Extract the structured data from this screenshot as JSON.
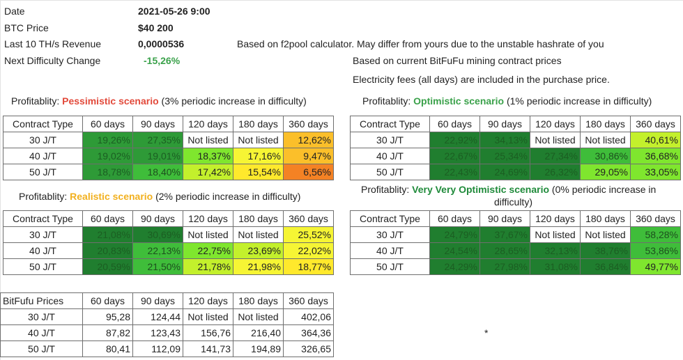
{
  "info": {
    "date_label": "Date",
    "date_value": "2021-05-26 9:00",
    "btc_label": "BTC Price",
    "btc_value": "$40 200",
    "rev_label": "Last 10 TH/s Revenue",
    "rev_value": "0,0000536",
    "rev_note": "Based on f2pool calculator. May differ from yours due to the unstable hashrate of you",
    "diff_label": "Next Difficulty Change",
    "diff_value": "-15,26%",
    "price_note": "Based on current BitFuFu mining contract prices",
    "elec_note": "Electricity fees (all days) are included in the purchase price."
  },
  "headers": [
    "Contract Type",
    "60 days",
    "90 days",
    "120 days",
    "180 days",
    "360 days"
  ],
  "row_labels": [
    "30 J/T",
    "40 J/T",
    "50 J/T"
  ],
  "pessimistic": {
    "prefix": "Profitablity: ",
    "name": "Pessimistic scenario",
    "suffix": " (3% periodic increase in difficulty)",
    "rows": [
      [
        "19,26%",
        "27,35%",
        "Not listed",
        "Not listed",
        "12,62%"
      ],
      [
        "19,02%",
        "19,01%",
        "18,37%",
        "17,16%",
        "9,47%"
      ],
      [
        "18,78%",
        "18,40%",
        "17,42%",
        "15,54%",
        "6,56%"
      ]
    ]
  },
  "optimistic": {
    "prefix": "Profitablity: ",
    "name": "Optimistic scenario",
    "suffix": " (1% periodic increase in difficulty)",
    "rows": [
      [
        "22,92%",
        "34,13%",
        "Not listed",
        "Not listed",
        "40,61%"
      ],
      [
        "22,67%",
        "25,34%",
        "27,34%",
        "30,86%",
        "36,68%"
      ],
      [
        "22,43%",
        "24,69%",
        "26,32%",
        "29,05%",
        "33,05%"
      ]
    ]
  },
  "realistic": {
    "prefix": "Profitablity: ",
    "name": "Realistic scenario",
    "suffix": " (2% periodic increase in difficulty)",
    "rows": [
      [
        "21,08%",
        "30,69%",
        "Not listed",
        "Not listed",
        "25,52%"
      ],
      [
        "20,83%",
        "22,13%",
        "22,75%",
        "23,69%",
        "22,02%"
      ],
      [
        "20,59%",
        "21,50%",
        "21,78%",
        "21,98%",
        "18,77%"
      ]
    ]
  },
  "very_optimistic": {
    "prefix": "Profitablity: ",
    "name": "Very Very Optimistic scenario",
    "suffix": " (0% periodic increase in",
    "suffix2": "difficulty)",
    "rows": [
      [
        "24,79%",
        "37,67%",
        "Not listed",
        "Not listed",
        "58,28%"
      ],
      [
        "24,54%",
        "28,65%",
        "32,13%",
        "38,76%",
        "53,86%"
      ],
      [
        "24,29%",
        "27,98%",
        "31,08%",
        "36,84%",
        "49,77%"
      ]
    ]
  },
  "prices": {
    "header": "BitFufu Prices",
    "rows": [
      [
        "95,28",
        "124,44",
        "Not listed",
        "Not listed",
        "402,06"
      ],
      [
        "87,82",
        "123,43",
        "156,76",
        "216,40",
        "364,36"
      ],
      [
        "80,41",
        "112,09",
        "141,73",
        "194,89",
        "326,65"
      ]
    ]
  },
  "asterisk": "*",
  "colors": {
    "pessimistic": "#e24a3b",
    "optimistic": "#3aa14a",
    "realistic": "#f2b01e",
    "very_optimistic": "#1f8a3a"
  }
}
